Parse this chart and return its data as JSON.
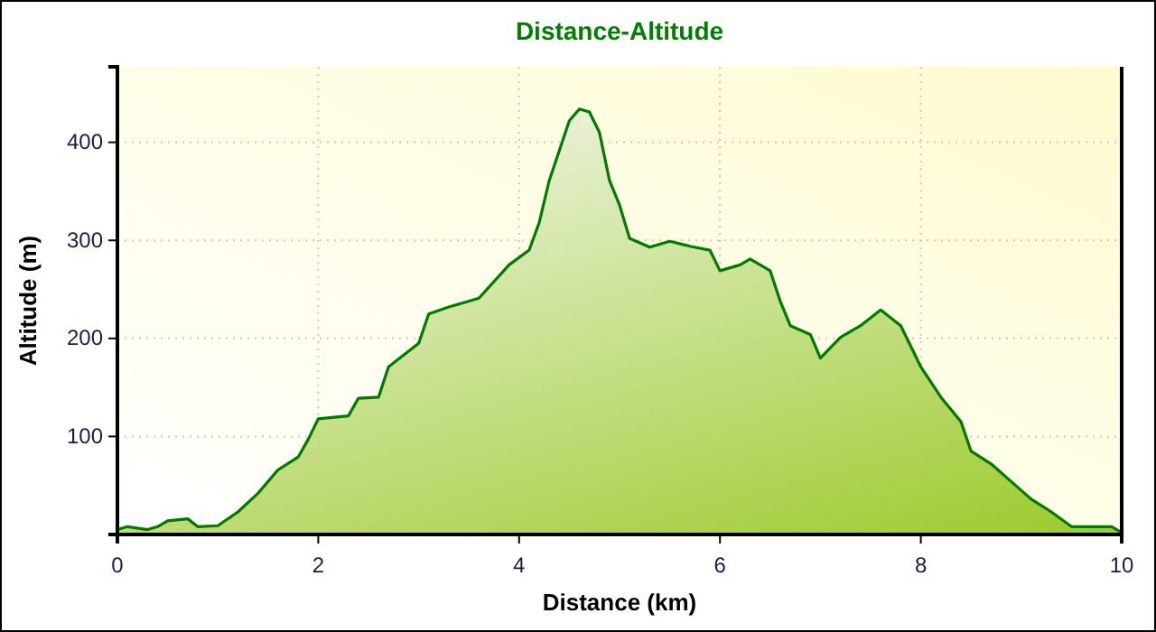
{
  "chart_data": {
    "type": "area",
    "title": "Distance-Altitude",
    "xlabel": "Distance (km)",
    "ylabel": "Altitude (m)",
    "xlim": [
      0,
      10
    ],
    "xticks": [
      0,
      2,
      4,
      6,
      8,
      10
    ],
    "ylim": [
      0,
      477
    ],
    "yticks": [
      100,
      200,
      300,
      400
    ],
    "grid": true,
    "series": [
      {
        "color": "#007a00",
        "x": [
          0,
          0.1,
          0.3,
          0.4,
          0.5,
          0.7,
          0.8,
          1.0,
          1.2,
          1.4,
          1.6,
          1.8,
          1.9,
          2.0,
          2.3,
          2.4,
          2.6,
          2.7,
          3.0,
          3.1,
          3.3,
          3.6,
          3.9,
          4.1,
          4.2,
          4.3,
          4.5,
          4.6,
          4.7,
          4.8,
          4.9,
          5.0,
          5.1,
          5.3,
          5.5,
          5.7,
          5.9,
          6.0,
          6.2,
          6.3,
          6.5,
          6.6,
          6.7,
          6.9,
          7.0,
          7.2,
          7.4,
          7.6,
          7.8,
          8.0,
          8.2,
          8.4,
          8.5,
          8.7,
          8.9,
          9.1,
          9.3,
          9.5,
          9.7,
          9.9,
          10.0
        ],
        "values": [
          5,
          8,
          5,
          8,
          14,
          16,
          8,
          9,
          23,
          42,
          66,
          79,
          97,
          118,
          121,
          139,
          140,
          171,
          195,
          225,
          232,
          241,
          275,
          290,
          318,
          361,
          422,
          434,
          431,
          410,
          361,
          336,
          302,
          293,
          299,
          294,
          290,
          269,
          275,
          281,
          269,
          238,
          213,
          204,
          180,
          201,
          213,
          229,
          213,
          171,
          140,
          115,
          85,
          72,
          54,
          36,
          23,
          8,
          8,
          8,
          2
        ]
      }
    ]
  }
}
